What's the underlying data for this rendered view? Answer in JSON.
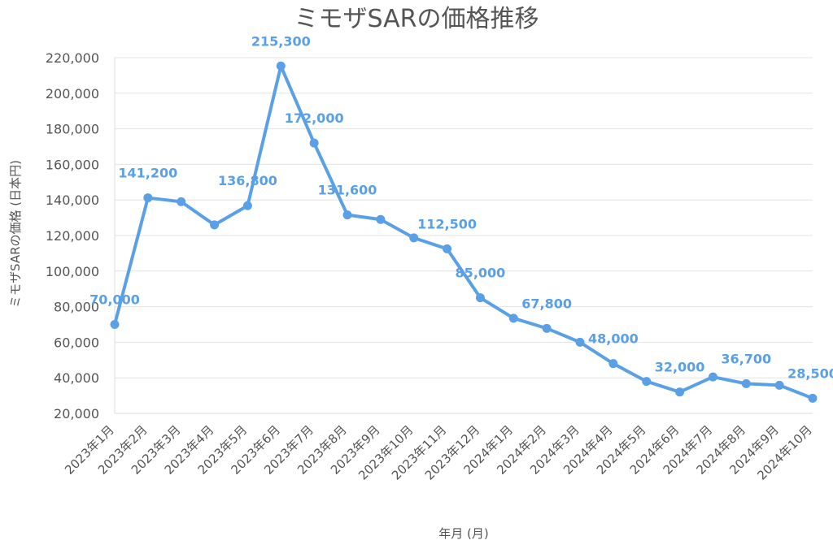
{
  "chart_data": {
    "type": "line",
    "title": "ミモザSARの価格推移",
    "xlabel": "年月 (月)",
    "ylabel": "ミモザSARの価格 (日本円)",
    "categories": [
      "2023年1月",
      "2023年2月",
      "2023年3月",
      "2023年4月",
      "2023年5月",
      "2023年6月",
      "2023年7月",
      "2023年8月",
      "2023年9月",
      "2023年10月",
      "2023年11月",
      "2023年12月",
      "2024年1月",
      "2024年2月",
      "2024年3月",
      "2024年4月",
      "2024年5月",
      "2024年6月",
      "2024年7月",
      "2024年8月",
      "2024年9月",
      "2024年10月"
    ],
    "series": [
      {
        "name": "",
        "values": [
          70000,
          141200,
          139000,
          126000,
          136800,
          215300,
          172000,
          131600,
          129000,
          118700,
          112500,
          85000,
          73500,
          67800,
          60000,
          48000,
          38000,
          32000,
          40500,
          36700,
          35800,
          28500
        ],
        "color": "#5aa0e6"
      }
    ],
    "data_labels": [
      {
        "index": 0,
        "text": "70,000"
      },
      {
        "index": 1,
        "text": "141,200"
      },
      {
        "index": 4,
        "text": "136,800"
      },
      {
        "index": 5,
        "text": "215,300"
      },
      {
        "index": 6,
        "text": "172,000"
      },
      {
        "index": 7,
        "text": "131,600"
      },
      {
        "index": 10,
        "text": "112,500"
      },
      {
        "index": 11,
        "text": "85,000"
      },
      {
        "index": 13,
        "text": "67,800"
      },
      {
        "index": 15,
        "text": "48,000"
      },
      {
        "index": 17,
        "text": "32,000"
      },
      {
        "index": 19,
        "text": "36,700"
      },
      {
        "index": 21,
        "text": "28,500"
      }
    ],
    "yticks": [
      20000,
      40000,
      60000,
      80000,
      100000,
      120000,
      140000,
      160000,
      180000,
      200000,
      220000
    ],
    "ytick_labels": [
      "20,000",
      "40,000",
      "60,000",
      "80,000",
      "100,000",
      "120,000",
      "140,000",
      "160,000",
      "180,000",
      "200,000",
      "220,000"
    ],
    "ylim": [
      20000,
      220000
    ],
    "grid": true,
    "legend": "none"
  }
}
